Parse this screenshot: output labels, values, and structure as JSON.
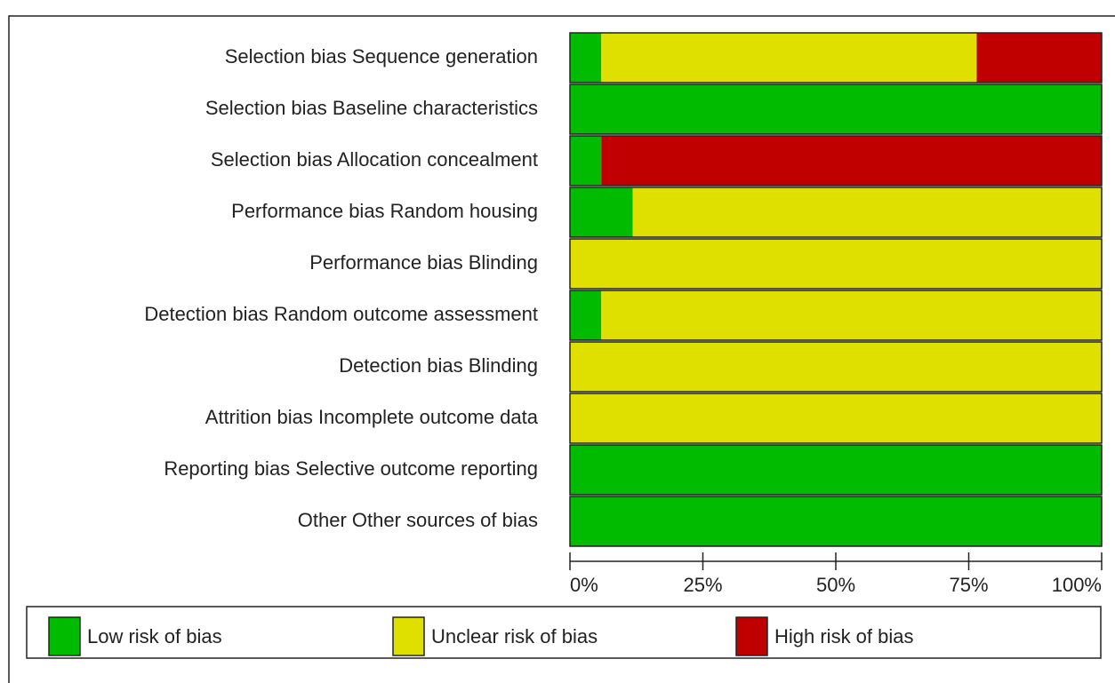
{
  "chart_data": {
    "type": "stacked-bar-horizontal",
    "categories": [
      "Selection bias Sequence generation",
      "Selection bias Baseline characteristics",
      "Selection bias Allocation concealment",
      "Performance bias Random housing",
      "Performance bias Blinding",
      "Detection bias Random outcome assessment",
      "Detection bias Blinding",
      "Attrition bias Incomplete outcome data",
      "Reporting bias Selective outcome reporting",
      "Other Other sources of bias"
    ],
    "series": [
      {
        "name": "Low risk of bias",
        "color": "#00bb00",
        "values": [
          5.9,
          100,
          5.9,
          11.8,
          0,
          5.9,
          0,
          0,
          100,
          100
        ]
      },
      {
        "name": "Unclear risk of bias",
        "color": "#e0e000",
        "values": [
          70.6,
          0,
          0,
          88.2,
          100,
          94.1,
          100,
          100,
          0,
          0
        ]
      },
      {
        "name": "High risk of bias",
        "color": "#c00000",
        "values": [
          23.5,
          0,
          94.1,
          0,
          0,
          0,
          0,
          0,
          0,
          0
        ]
      }
    ],
    "xlim": [
      0,
      100
    ],
    "xticks": [
      {
        "value": 0,
        "label": "0%"
      },
      {
        "value": 25,
        "label": "25%"
      },
      {
        "value": 50,
        "label": "50%"
      },
      {
        "value": 75,
        "label": "75%"
      },
      {
        "value": 100,
        "label": "100%"
      }
    ]
  }
}
